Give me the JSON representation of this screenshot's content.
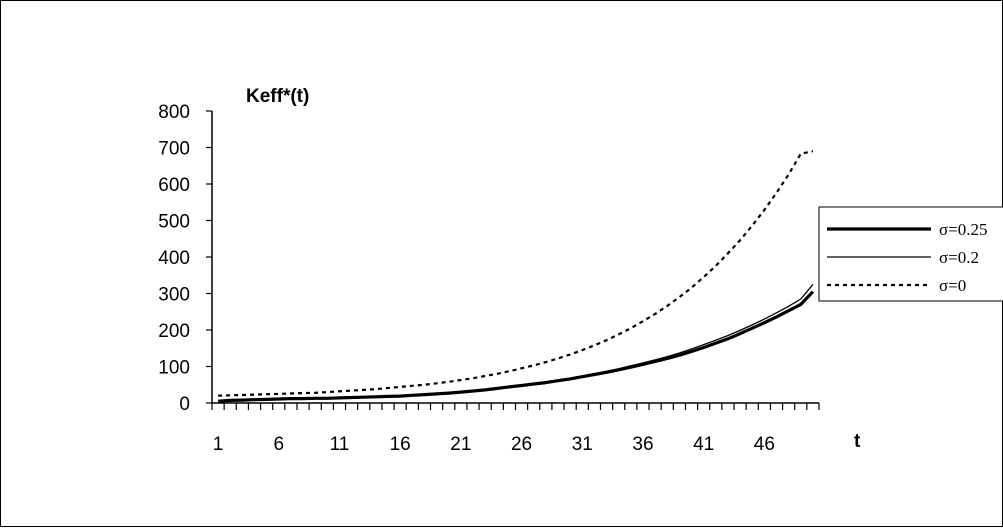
{
  "chart_data": {
    "type": "line",
    "ylabel": "Keff*(t)",
    "xlabel": "t",
    "ylim": [
      0,
      800
    ],
    "yticks": [
      0,
      100,
      200,
      300,
      400,
      500,
      600,
      700,
      800
    ],
    "xlim": [
      1,
      50
    ],
    "xtick_labels": [
      1,
      6,
      11,
      16,
      21,
      26,
      31,
      36,
      41,
      46
    ],
    "grid": false,
    "legend_position": "right",
    "x": [
      1,
      2,
      3,
      4,
      5,
      6,
      7,
      8,
      9,
      10,
      11,
      12,
      13,
      14,
      15,
      16,
      17,
      18,
      19,
      20,
      21,
      22,
      23,
      24,
      25,
      26,
      27,
      28,
      29,
      30,
      31,
      32,
      33,
      34,
      35,
      36,
      37,
      38,
      39,
      40,
      41,
      42,
      43,
      44,
      45,
      46,
      47,
      48,
      49,
      50
    ],
    "series": [
      {
        "name": "σ=0.25",
        "style": "thick-solid",
        "values": [
          5,
          7,
          8,
          9,
          10,
          11,
          12,
          12,
          13,
          13,
          14,
          15,
          16,
          17,
          18,
          19,
          21,
          23,
          25,
          27,
          30,
          33,
          36,
          40,
          44,
          48,
          52,
          56,
          61,
          66,
          72,
          78,
          84,
          91,
          98,
          106,
          114,
          122,
          131,
          141,
          152,
          164,
          176,
          190,
          205,
          220,
          236,
          253,
          270,
          305
        ]
      },
      {
        "name": "σ=0.2",
        "style": "thin-solid",
        "values": [
          6,
          8,
          9,
          10,
          10,
          11,
          12,
          13,
          13,
          14,
          15,
          16,
          17,
          18,
          19,
          21,
          22,
          24,
          26,
          28,
          31,
          34,
          37,
          41,
          45,
          49,
          53,
          58,
          63,
          68,
          74,
          80,
          87,
          94,
          102,
          110,
          118,
          127,
          137,
          148,
          160,
          172,
          185,
          199,
          214,
          230,
          247,
          265,
          285,
          325
        ]
      },
      {
        "name": "σ=0",
        "style": "dotted",
        "values": [
          20,
          21,
          22,
          23,
          24,
          25,
          26,
          27,
          28,
          30,
          32,
          34,
          36,
          38,
          41,
          44,
          47,
          50,
          54,
          58,
          63,
          68,
          74,
          80,
          87,
          95,
          103,
          112,
          122,
          133,
          145,
          158,
          172,
          188,
          205,
          224,
          244,
          266,
          290,
          316,
          345,
          376,
          410,
          446,
          486,
          529,
          576,
          626,
          683,
          690
        ]
      }
    ]
  },
  "colors": {
    "line": "#000000",
    "background": "#ffffff"
  }
}
